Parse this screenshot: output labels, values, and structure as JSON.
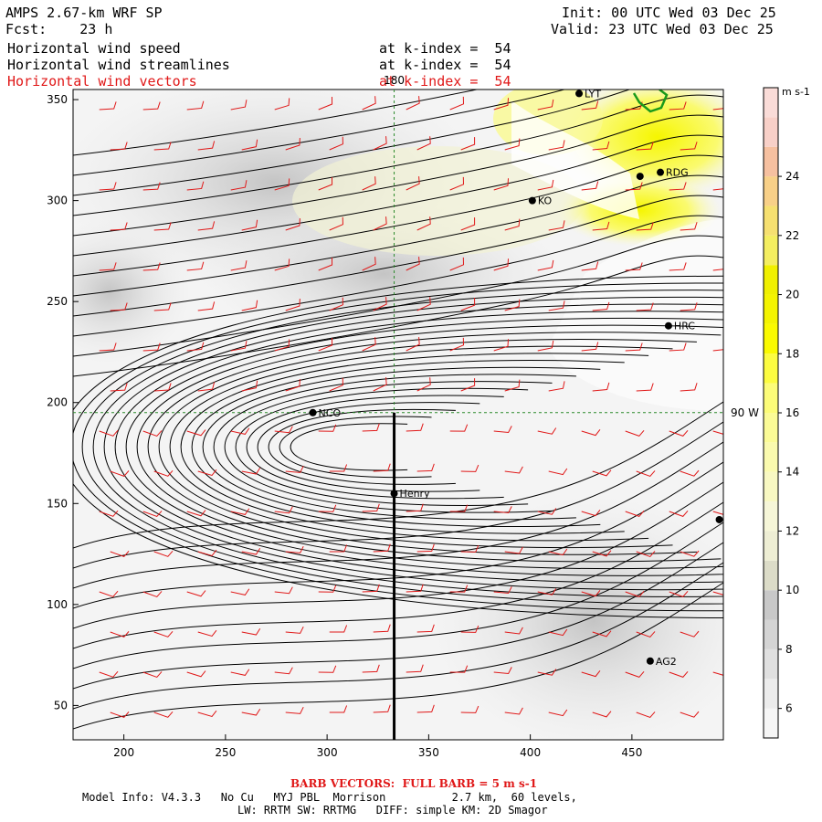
{
  "header": {
    "title": "AMPS 2.67-km WRF SP",
    "fcst": "Fcst:    23 h",
    "init": "Init: 00 UTC Wed 03 Dec 25",
    "valid": "Valid: 23 UTC Wed 03 Dec 25",
    "fields": [
      {
        "name": "Horizontal wind speed",
        "level": "at k-index =  54"
      },
      {
        "name": "Horizontal wind streamlines",
        "level": "at k-index =  54"
      },
      {
        "name": "Horizontal wind vectors",
        "level": "at k-index =  54"
      }
    ]
  },
  "chart_data": {
    "type": "map",
    "title": "Horizontal wind speed / streamlines / vectors at k-index 54",
    "xlim": [
      175,
      495
    ],
    "ylim": [
      33,
      355
    ],
    "xticks": [
      200,
      250,
      300,
      350,
      400,
      450
    ],
    "yticks": [
      50,
      100,
      150,
      200,
      250,
      300,
      350
    ],
    "meridian_label": "180",
    "parallel_label": "90 W",
    "crosshair": {
      "x": 333,
      "y": 195
    },
    "cross_section_line": {
      "x": 333,
      "y_from": 195,
      "y_to": 33
    },
    "stations": [
      {
        "id": "NCO",
        "x": 293,
        "y": 195
      },
      {
        "id": "Henry",
        "x": 333,
        "y": 155
      },
      {
        "id": "HRC",
        "x": 468,
        "y": 238
      },
      {
        "id": "RDG",
        "x": 464,
        "y": 314
      },
      {
        "id": "KO",
        "x": 401,
        "y": 300
      },
      {
        "id": "LYT",
        "x": 424,
        "y": 353
      },
      {
        "id": "",
        "x": 454,
        "y": 312
      },
      {
        "id": "",
        "x": 493,
        "y": 142
      },
      {
        "id": "AG2",
        "x": 459,
        "y": 72
      }
    ],
    "colorbar": {
      "unit": "m s-1",
      "levels": [
        5,
        6,
        7,
        8,
        9,
        10,
        11,
        12,
        13,
        14,
        15,
        16,
        17,
        18,
        19,
        20,
        21,
        22,
        23,
        24,
        25,
        26,
        27
      ],
      "labels": [
        6,
        8,
        10,
        12,
        14,
        16,
        18,
        20,
        22,
        24
      ],
      "colors": [
        "#f6f6f6",
        "#ececec",
        "#e0e0e0",
        "#d4d4d4",
        "#c8c8c8",
        "#dcdcc8",
        "#eeeed4",
        "#f6f6d8",
        "#f8f8c2",
        "#fafaae",
        "#fbfb96",
        "#fcfc78",
        "#fcfc40",
        "#fafa00",
        "#f4f400",
        "#f0f000",
        "#f4ee60",
        "#f6e070",
        "#f8d088",
        "#f6c0a0",
        "#f8d0c8",
        "#fadcd8"
      ]
    },
    "barb_legend": "BARB VECTORS:  FULL BARB = 5 m s-1"
  },
  "footer": {
    "model_info": "Model Info: V4.3.3   No Cu   MYJ PBL  Morrison          2.7 km,  60 levels,",
    "physics": "LW: RRTM SW: RRTMG   DIFF: simple KM: 2D Smagor"
  },
  "colors": {
    "barb": "#e01818",
    "grid": "#2a8a2a",
    "coast": "#1a9a1a"
  }
}
